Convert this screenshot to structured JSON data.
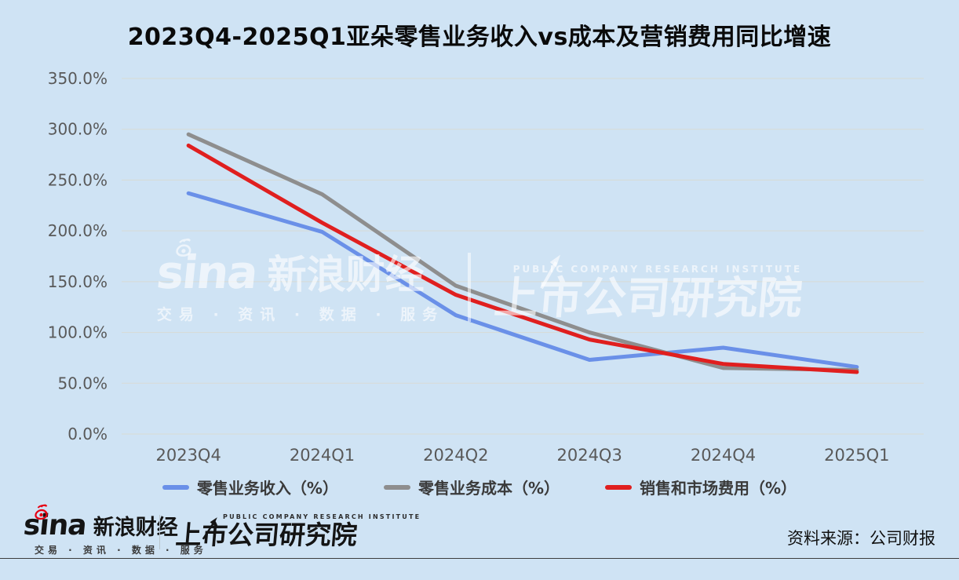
{
  "title": "2023Q4-2025Q1亚朵零售业务收入vs成本及营销费用同比增速",
  "chart_data": {
    "type": "line",
    "categories": [
      "2023Q4",
      "2024Q1",
      "2024Q2",
      "2024Q3",
      "2024Q4",
      "2025Q1"
    ],
    "series": [
      {
        "name": "零售业务收入（%）",
        "color": "#6a90e8",
        "values": [
          237,
          199,
          117,
          73,
          85,
          66
        ]
      },
      {
        "name": "零售业务成本（%）",
        "color": "#8e8e8e",
        "values": [
          295,
          236,
          146,
          100,
          65,
          63
        ]
      },
      {
        "name": "销售和市场费用（%）",
        "color": "#e01f1f",
        "values": [
          284,
          208,
          137,
          93,
          69,
          61
        ]
      }
    ],
    "title": "2023Q4-2025Q1亚朵零售业务收入vs成本及营销费用同比增速",
    "xlabel": "",
    "ylabel": "",
    "ylim": [
      0,
      350
    ],
    "ytick_step": 50,
    "ytick_labels": [
      "0.0%",
      "50.0%",
      "100.0%",
      "150.0%",
      "200.0%",
      "250.0%",
      "300.0%",
      "350.0%"
    ],
    "grid": "horizontal",
    "legend_position": "bottom"
  },
  "watermark": {
    "sina_logo_text": "sina",
    "sina_name": "新浪财经",
    "sina_tagline": "交易 · 资讯 · 数据 · 服务",
    "institute_subtitle": "PUBLIC COMPANY RESEARCH INSTITUTE",
    "institute_name": "上市公司研究院"
  },
  "footer": {
    "sina_logo_text": "sina",
    "sina_name": "新浪财经",
    "sina_tagline": "交易 · 资讯 · 数据 · 服务",
    "institute_subtitle": "PUBLIC COMPANY RESEARCH INSTITUTE",
    "institute_name": "上市公司研究院",
    "source_label": "资料来源：公司财报"
  },
  "colors": {
    "background": "#cfe3f4",
    "gridline": "#d8dbd5",
    "axis_text": "#595959",
    "title_text": "#0a0a0a",
    "legend_text": "#3a3a3a",
    "footer_line": "#3d3d3d",
    "sina_red": "#e60012"
  }
}
